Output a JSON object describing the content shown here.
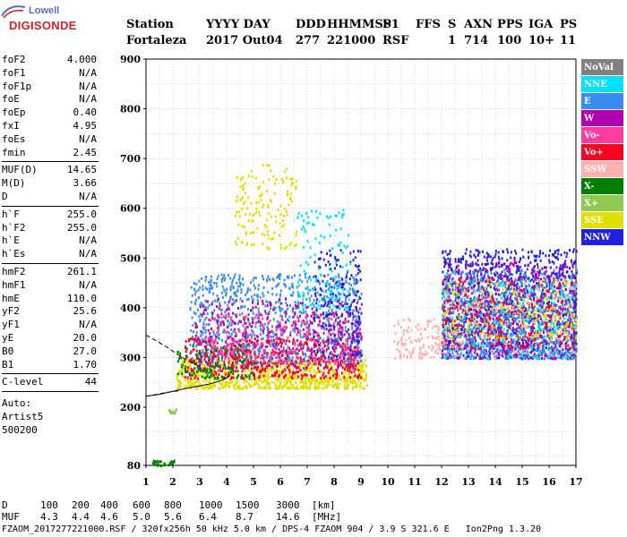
{
  "logo": {
    "top": "Lowell",
    "bottom": "DIGISONDE"
  },
  "header": {
    "row1": [
      "Station",
      "YYYY DAY",
      "DDD",
      "HHMMSS",
      "P1",
      "FFS",
      "S",
      "AXN",
      "PPS",
      "IGA",
      "PS"
    ],
    "row2": [
      "Fortaleza",
      "2017 Out04",
      "277",
      "221000",
      "RSF",
      "",
      "1",
      "714",
      "100",
      "10+",
      "11"
    ]
  },
  "params_group1": [
    {
      "name": "foF2",
      "value": "4.000"
    },
    {
      "name": "foF1",
      "value": "N/A"
    },
    {
      "name": "foF1p",
      "value": "N/A"
    },
    {
      "name": "foE",
      "value": "N/A"
    },
    {
      "name": "foEp",
      "value": "0.40"
    },
    {
      "name": "fxI",
      "value": "4.95"
    },
    {
      "name": "foEs",
      "value": "N/A"
    },
    {
      "name": "fmin",
      "value": "2.45"
    }
  ],
  "params_group2": [
    {
      "name": "MUF(D)",
      "value": "14.65"
    },
    {
      "name": "M(D)",
      "value": "3.66"
    },
    {
      "name": "D",
      "value": "N/A"
    }
  ],
  "params_group3": [
    {
      "name": "h`F",
      "value": "255.0"
    },
    {
      "name": "h`F2",
      "value": "255.0"
    },
    {
      "name": "h`E",
      "value": "N/A"
    },
    {
      "name": "h`Es",
      "value": "N/A"
    }
  ],
  "params_group4": [
    {
      "name": "hmF2",
      "value": "261.1"
    },
    {
      "name": "hmF1",
      "value": "N/A"
    },
    {
      "name": "hmE",
      "value": "110.0"
    },
    {
      "name": "yF2",
      "value": "25.6"
    },
    {
      "name": "yF1",
      "value": "N/A"
    },
    {
      "name": "yE",
      "value": "20.0"
    },
    {
      "name": "B0",
      "value": "27.0"
    },
    {
      "name": "B1",
      "value": "1.70"
    }
  ],
  "clevel": {
    "name": "C-level",
    "value": "44"
  },
  "auto": {
    "line1": "Auto:",
    "line2": "Artist5",
    "line3": "500200"
  },
  "legend": [
    {
      "label": "NoVal",
      "color": "#808080"
    },
    {
      "label": "NNE",
      "color": "#00e0ff"
    },
    {
      "label": "E",
      "color": "#3a8cf0"
    },
    {
      "label": "W",
      "color": "#b000b0"
    },
    {
      "label": "Vo-",
      "color": "#ff3ca0"
    },
    {
      "label": "Vo+",
      "color": "#ff0020"
    },
    {
      "label": "SSW",
      "color": "#ffb0b0"
    },
    {
      "label": "X-",
      "color": "#008000"
    },
    {
      "label": "X+",
      "color": "#90c850"
    },
    {
      "label": "SSE",
      "color": "#e0e000"
    },
    {
      "label": "NNW",
      "color": "#2020e0"
    }
  ],
  "muf_table": {
    "d_label": "D",
    "d_values": [
      "100",
      "200",
      "400",
      "600",
      "800",
      "1000",
      "1500",
      "3000",
      "[km]"
    ],
    "muf_label": "MUF",
    "muf_values": [
      "4.3",
      "4.4",
      "4.6",
      "5.0",
      "5.6",
      "6.4",
      "8.7",
      "14.6",
      "[MHz]"
    ]
  },
  "footer": "FZAOM_2017277221000.RSF / 320fx256h 50 kHz 5.0 km / DPS-4 FZAOM 904 / 3.9 S 321.6 E   Ion2Png 1.3.20",
  "chart_data": {
    "type": "scatter",
    "x_ticks": [
      1,
      2,
      3,
      4,
      5,
      6,
      7,
      8,
      9,
      10,
      11,
      12,
      13,
      14,
      15,
      16,
      17
    ],
    "y_ticks": [
      80,
      200,
      300,
      400,
      500,
      600,
      700,
      800,
      900
    ],
    "xlim": [
      1,
      17
    ],
    "ylim": [
      80,
      900
    ],
    "grid": true,
    "trace_fit": {
      "x": [
        1.0,
        1.5,
        2.0,
        2.5,
        3.0,
        3.3,
        3.6,
        3.9,
        4.1
      ],
      "y": [
        222,
        226,
        232,
        238,
        243,
        246,
        250,
        256,
        262
      ]
    },
    "trace_upper_dashed": {
      "x": [
        1.0,
        1.4,
        1.8,
        2.2,
        2.6,
        3.0
      ],
      "y": [
        345,
        333,
        320,
        305,
        292,
        282
      ]
    },
    "trace_lower_dashed": {
      "x": [
        1.0,
        1.4,
        1.8,
        2.2
      ],
      "y": [
        222,
        226,
        230,
        233
      ]
    },
    "echo_regions": [
      {
        "mode": "SSE",
        "x0": 2.1,
        "x1": 9.2,
        "y0": 240,
        "y1": 300,
        "n": 900
      },
      {
        "mode": "SSE",
        "x0": 4.3,
        "x1": 6.6,
        "y0": 520,
        "y1": 690,
        "n": 150
      },
      {
        "mode": "E",
        "x0": 2.6,
        "x1": 9.0,
        "y0": 290,
        "y1": 470,
        "n": 900
      },
      {
        "mode": "W",
        "x0": 2.8,
        "x1": 9.0,
        "y0": 280,
        "y1": 420,
        "n": 450
      },
      {
        "mode": "Vo+",
        "x0": 2.4,
        "x1": 9.0,
        "y0": 260,
        "y1": 340,
        "n": 380
      },
      {
        "mode": "NNW",
        "x0": 7.2,
        "x1": 9.0,
        "y0": 300,
        "y1": 520,
        "n": 200
      },
      {
        "mode": "NNE",
        "x0": 6.6,
        "x1": 8.6,
        "y0": 400,
        "y1": 600,
        "n": 120
      },
      {
        "mode": "Vo-",
        "x0": 3.2,
        "x1": 9.0,
        "y0": 290,
        "y1": 390,
        "n": 300
      },
      {
        "mode": "X-",
        "x0": 2.1,
        "x1": 5.0,
        "y0": 260,
        "y1": 330,
        "n": 120
      },
      {
        "mode": "SSW",
        "x0": 10.2,
        "x1": 12.0,
        "y0": 300,
        "y1": 380,
        "n": 120
      },
      {
        "mode": "NNW",
        "x0": 12.0,
        "x1": 17.0,
        "y0": 300,
        "y1": 520,
        "n": 1100
      },
      {
        "mode": "E",
        "x0": 12.0,
        "x1": 17.0,
        "y0": 300,
        "y1": 480,
        "n": 700
      },
      {
        "mode": "W",
        "x0": 12.0,
        "x1": 17.0,
        "y0": 300,
        "y1": 500,
        "n": 500
      },
      {
        "mode": "Vo+",
        "x0": 12.0,
        "x1": 17.0,
        "y0": 320,
        "y1": 460,
        "n": 300
      },
      {
        "mode": "NNE",
        "x0": 12.0,
        "x1": 17.0,
        "y0": 300,
        "y1": 460,
        "n": 300
      },
      {
        "mode": "SSE",
        "x0": 12.0,
        "x1": 17.0,
        "y0": 340,
        "y1": 460,
        "n": 200
      },
      {
        "mode": "SSW",
        "x0": 12.0,
        "x1": 17.0,
        "y0": 300,
        "y1": 460,
        "n": 180
      },
      {
        "mode": "X+",
        "x0": 1.8,
        "x1": 2.1,
        "y0": 190,
        "y1": 198,
        "n": 12
      },
      {
        "mode": "X-",
        "x0": 1.2,
        "x1": 2.1,
        "y0": 82,
        "y1": 92,
        "n": 30
      }
    ]
  }
}
